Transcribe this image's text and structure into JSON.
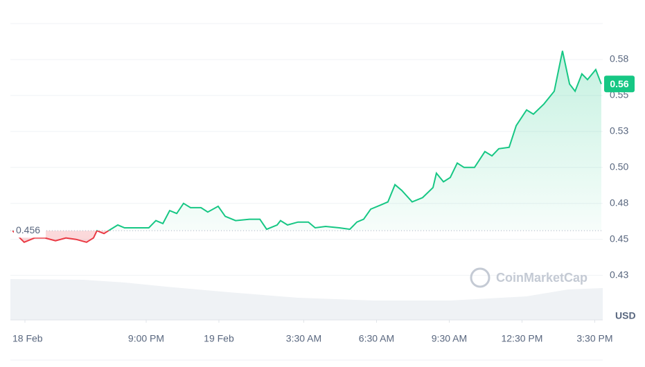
{
  "chart_data": {
    "type": "line",
    "x": [
      -8.51,
      -8.03,
      -7.6,
      -7.17,
      -6.74,
      -6.31,
      -5.89,
      -5.46,
      -5.17,
      -5.03,
      -4.74,
      -4.46,
      -4.17,
      -3.89,
      -3.31,
      -2.89,
      -2.6,
      -2.31,
      -2.03,
      -1.74,
      -1.46,
      -1.17,
      -0.74,
      -0.46,
      -0.03,
      0.26,
      0.69,
      1.26,
      1.69,
      1.97,
      2.4,
      2.54,
      2.83,
      3.26,
      3.69,
      3.97,
      4.4,
      4.97,
      5.4,
      5.69,
      5.97,
      6.26,
      6.69,
      6.97,
      7.26,
      7.54,
      7.97,
      8.4,
      8.83,
      8.97,
      9.26,
      9.54,
      9.83,
      10.11,
      10.54,
      10.97,
      11.26,
      11.54,
      11.97,
      12.26,
      12.69,
      12.97,
      13.4,
      13.83,
      14.17,
      14.46,
      14.69,
      14.97,
      15.2,
      15.54,
      15.77
    ],
    "series": [
      {
        "name": "USD",
        "color": "#16c784",
        "down_color": "#ea3943",
        "values": [
          0.456,
          0.448,
          0.451,
          0.451,
          0.449,
          0.451,
          0.45,
          0.448,
          0.451,
          0.456,
          0.454,
          0.457,
          0.46,
          0.458,
          0.458,
          0.458,
          0.463,
          0.461,
          0.47,
          0.468,
          0.475,
          0.472,
          0.472,
          0.469,
          0.473,
          0.466,
          0.463,
          0.464,
          0.464,
          0.457,
          0.46,
          0.463,
          0.46,
          0.462,
          0.462,
          0.458,
          0.459,
          0.458,
          0.457,
          0.462,
          0.464,
          0.471,
          0.474,
          0.476,
          0.488,
          0.484,
          0.476,
          0.479,
          0.486,
          0.496,
          0.49,
          0.493,
          0.503,
          0.5,
          0.5,
          0.511,
          0.508,
          0.513,
          0.514,
          0.529,
          0.54,
          0.537,
          0.544,
          0.553,
          0.581,
          0.558,
          0.553,
          0.565,
          0.561,
          0.568,
          0.558
        ]
      }
    ],
    "reference": 0.456,
    "current": {
      "value": 0.558,
      "label": "0.56"
    },
    "y_axis_label": "USD",
    "watermark": "CoinMarketCap",
    "xlim": [
      -8.6,
      15.83
    ],
    "xticks": [
      {
        "value": -8,
        "label": "18 Feb"
      },
      {
        "value": -3,
        "label": "9:00 PM"
      },
      {
        "value": 0,
        "label": "19 Feb"
      },
      {
        "value": 3.5,
        "label": "3:30 AM"
      },
      {
        "value": 6.5,
        "label": "6:30 AM"
      },
      {
        "value": 9.5,
        "label": "9:30 AM"
      },
      {
        "value": 12.5,
        "label": "12:30 PM"
      },
      {
        "value": 15.5,
        "label": "3:30 PM"
      }
    ],
    "ylim": [
      0.394,
      0.6
    ],
    "yticks": [
      {
        "value": 0.425,
        "label": "0.43"
      },
      0.45,
      {
        "value": 0.475,
        "label": "0.48"
      },
      {
        "value": 0.5,
        "label": "0.50"
      },
      {
        "value": 0.525,
        "label": "0.53"
      },
      0.55,
      {
        "value": 0.575,
        "label": "0.58"
      }
    ],
    "grid": true
  }
}
